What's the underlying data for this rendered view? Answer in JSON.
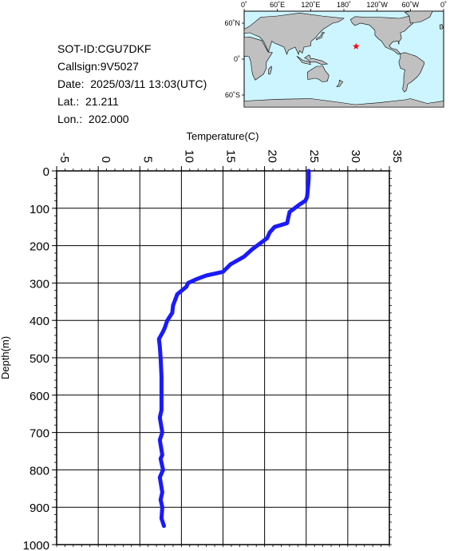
{
  "info": {
    "sot_id": "SOT-ID:CGU7DKF",
    "callsign": "Callsign:9V5027",
    "date": "Date:  2025/03/11 13:03(UTC)",
    "lat": "Lat.:  21.211",
    "lon": "Lon.:  202.000"
  },
  "map": {
    "lon_labels": [
      "0˚",
      "60˚E",
      "120˚E",
      "180˚",
      "120˚W",
      "60˚W",
      "0˚"
    ],
    "lat_labels": [
      "60˚N",
      "0˚",
      "60˚S"
    ],
    "ocean_color": "#ccf5ff",
    "land_color": "#c0c0c0",
    "marker_color": "#ff0000",
    "marker_icon": "star-icon",
    "marker": {
      "lat": 21.211,
      "lon": 202.0
    }
  },
  "chart_data": {
    "type": "line",
    "xlabel": "Temperature(C)",
    "ylabel": "Depth(m)",
    "xlim": [
      -5,
      35
    ],
    "ylim": [
      0,
      1000
    ],
    "y_inverted": true,
    "x_ticks": [
      "-5",
      "0",
      "5",
      "10",
      "15",
      "20",
      "25",
      "30",
      "35"
    ],
    "y_ticks": [
      "0",
      "100",
      "200",
      "300",
      "400",
      "500",
      "600",
      "700",
      "800",
      "900",
      "1000"
    ],
    "grid": true,
    "series_color": "#1a1aff",
    "series": [
      {
        "x": [
          25.3,
          25.3,
          25.2,
          25.1,
          24.9,
          24.2,
          23.0,
          22.7,
          21.2,
          20.6,
          20.3,
          18.5,
          17.5,
          15.9,
          15.0,
          13.0,
          11.8,
          10.8,
          10.6,
          9.5,
          9.0,
          8.9,
          8.3,
          8.0,
          7.8,
          7.3,
          7.4,
          7.5,
          7.6,
          7.6,
          7.4,
          7.7,
          7.4,
          7.7,
          7.5,
          7.8,
          7.4,
          7.7,
          7.5,
          7.7,
          7.6,
          7.9
        ],
        "y": [
          0,
          20,
          50,
          70,
          80,
          90,
          110,
          140,
          150,
          165,
          180,
          210,
          230,
          250,
          270,
          280,
          290,
          300,
          310,
          330,
          360,
          380,
          400,
          420,
          430,
          450,
          470,
          500,
          550,
          640,
          660,
          700,
          720,
          760,
          770,
          800,
          820,
          860,
          880,
          900,
          930,
          950
        ]
      }
    ]
  }
}
